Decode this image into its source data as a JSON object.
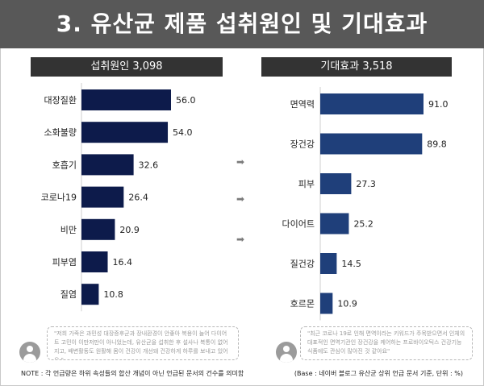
{
  "page": {
    "title": "3. 유산균 제품 섭취원인 및 기대효과"
  },
  "colors": {
    "header_bg": "#585858",
    "panel_head_bg": "#333333",
    "left_bar": "#0d1b4b",
    "right_bar": "#1f3f7a",
    "arrow": "#7a7a7a"
  },
  "chart_data": [
    {
      "type": "bar",
      "orientation": "horizontal",
      "title": "섭취원인 3,098",
      "categories": [
        "대장질환",
        "소화불량",
        "호흡기",
        "코로나19",
        "비만",
        "피부염",
        "질염"
      ],
      "values": [
        56.0,
        54.0,
        32.6,
        26.4,
        20.9,
        16.4,
        10.8
      ],
      "value_labels": [
        "56.0",
        "54.0",
        "32.6",
        "26.4",
        "20.9",
        "16.4",
        "10.8"
      ],
      "xlim": [
        0,
        56.0
      ],
      "quote": "\"저희 가족은 과민성 대장증후군과 장내환경이 안좋아 복용이 늘어 다이어트 고민이 이만저만이 아니었는데, 유산균을 섭취한 후 설사나 복통이 없어지고, 배변활동도 원활해 몸이 건강이 개선돼 건강하게 하루를 보내고 있어요.\""
    },
    {
      "type": "bar",
      "orientation": "horizontal",
      "title": "기대효과 3,518",
      "categories": [
        "면역력",
        "장건강",
        "피부",
        "다이어트",
        "질건강",
        "호르몬"
      ],
      "values": [
        91.0,
        89.8,
        27.3,
        25.2,
        14.5,
        10.9
      ],
      "value_labels": [
        "91.0",
        "89.8",
        "27.3",
        "25.2",
        "14.5",
        "10.9"
      ],
      "xlim": [
        0,
        91.0
      ],
      "quote": "\"최근 코로나 19로 인해 면역이라는 키워드가 주목받으면서 인체의 대표적인 면역기관인 장건강을 케어하는 프로바이오틱스 건강기능식품에도 관심이 많아진 것 같아요\""
    }
  ],
  "arrows": [
    "➡",
    "➡",
    "➡"
  ],
  "notes": {
    "left": "NOTE : 각 언급량은 하위 속성들의 합산 개념이 아닌 언급된 문서의 건수를 의미함",
    "right": "(Base : 네이버 블로그 유산균 상위 언급 문서 기준, 단위 : %)"
  }
}
